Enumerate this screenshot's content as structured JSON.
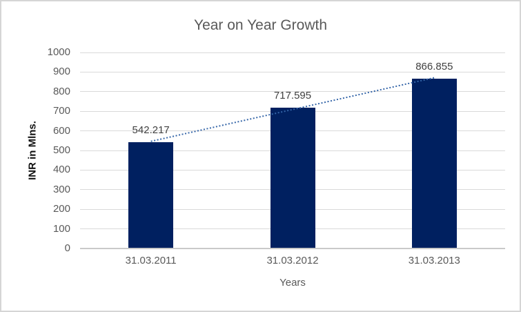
{
  "chart_data": {
    "type": "bar",
    "title": "Year on Year Growth",
    "categories": [
      "31.03.2011",
      "31.03.2012",
      "31.03.2013"
    ],
    "values": [
      542.217,
      717.595,
      866.855
    ],
    "xlabel": "Years",
    "ylabel": "INR in Mlns.",
    "ylim": [
      0,
      1000
    ],
    "yticks": [
      0,
      100,
      200,
      300,
      400,
      500,
      600,
      700,
      800,
      900,
      1000
    ],
    "grid": true,
    "legend": "none",
    "trendline": {
      "type": "linear",
      "style": "dotted"
    },
    "colors": {
      "bar": "#002060",
      "trendline": "#3465a8",
      "gridline": "#d9d9d9",
      "axis_line": "#c9c9c9",
      "title": "#595959",
      "tick_label": "#595959",
      "data_label": "#404040",
      "y_axis_title": "#111111",
      "border": "#d5d5d5",
      "background": "#ffffff"
    }
  }
}
